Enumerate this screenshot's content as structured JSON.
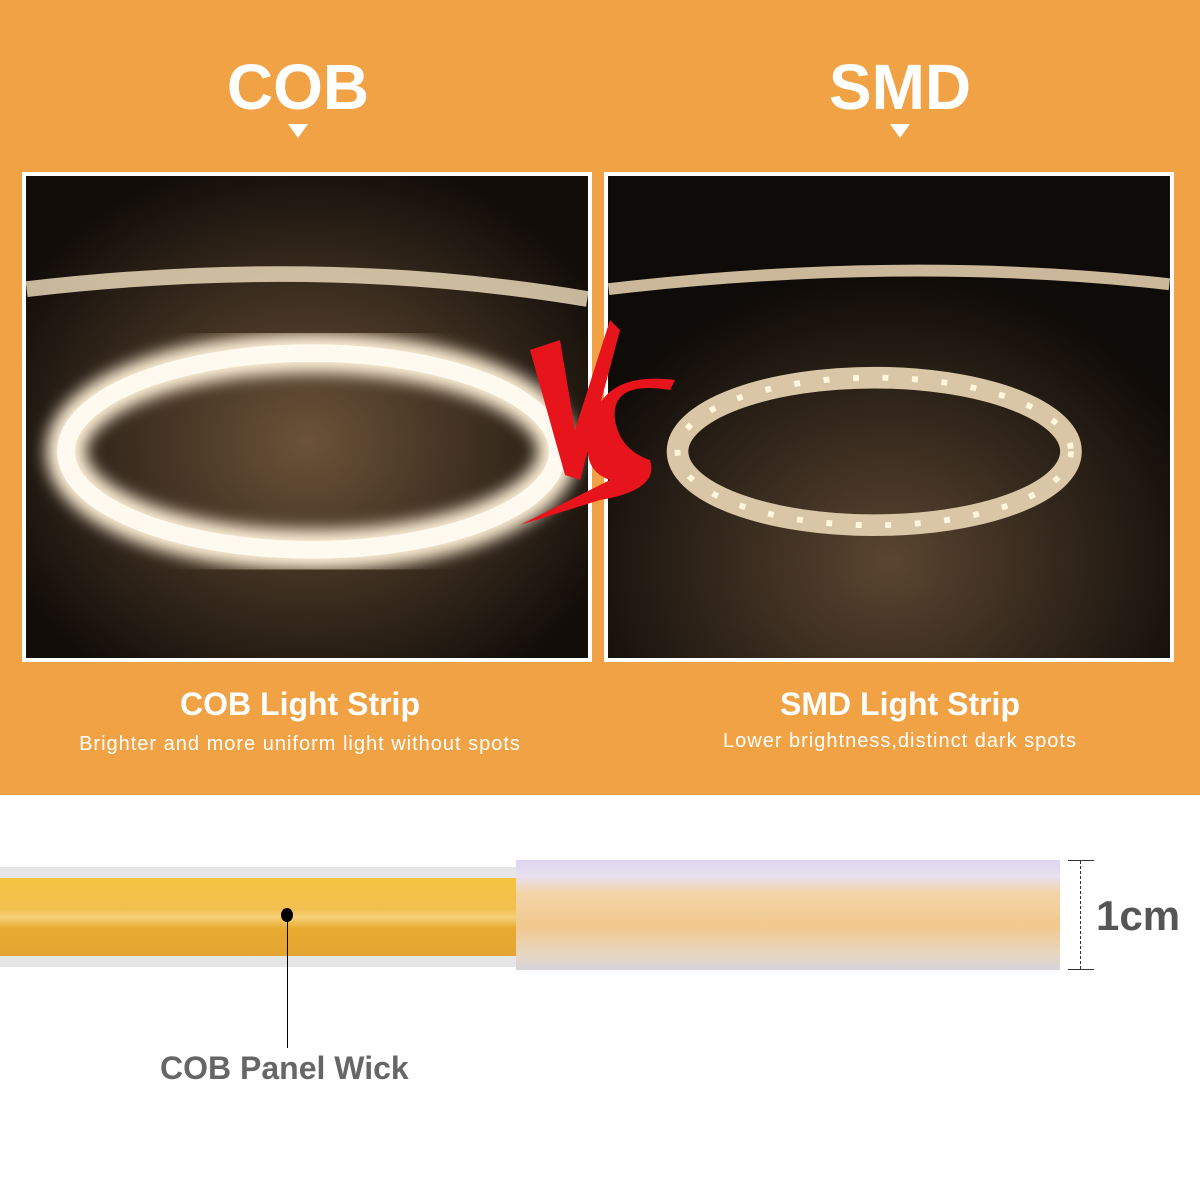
{
  "left": {
    "heading": "COB",
    "title": "COB Light Strip",
    "subtitle": "Brighter and more uniform light without spots"
  },
  "right": {
    "heading": "SMD",
    "title": "SMD Light Strip",
    "subtitle": "Lower brightness,distinct dark spots"
  },
  "vs_label": "VS",
  "bottom": {
    "callout": "COB Panel Wick",
    "dimension": "1cm"
  },
  "colors": {
    "background": "#F0A244",
    "vs": "#E8141B",
    "wick": "#F0B030"
  }
}
